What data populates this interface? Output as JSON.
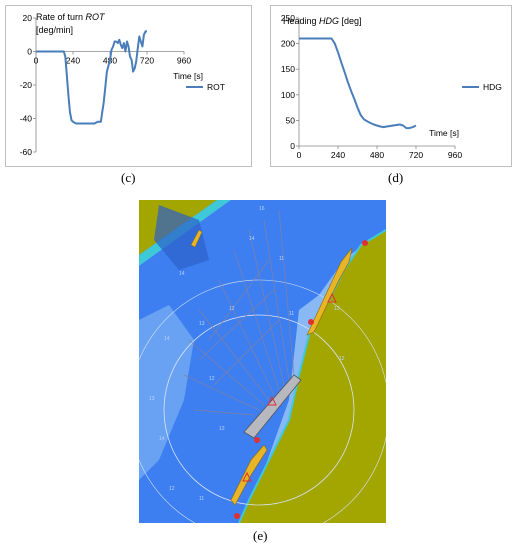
{
  "captions": {
    "c": "(c)",
    "d": "(d)",
    "e": "(e)"
  },
  "chart_data": [
    {
      "type": "line",
      "title_line1": "Rate of turn ",
      "title_var": "ROT",
      "title_line2": "[deg/min]",
      "xlabel": "Time [s]",
      "xlim": [
        0,
        960
      ],
      "ylim": [
        -60,
        20
      ],
      "xticks": [
        "0",
        "240",
        "480",
        "720",
        "960"
      ],
      "yticks": [
        "20",
        "0",
        "-20",
        "-40",
        "-60"
      ],
      "legend_position": "right",
      "series": [
        {
          "name": "ROT",
          "color": "#4a7ebb",
          "x": [
            0,
            180,
            190,
            200,
            210,
            220,
            230,
            240,
            260,
            300,
            360,
            380,
            400,
            420,
            440,
            460,
            480,
            490,
            500,
            510,
            520,
            530,
            540,
            550,
            560,
            570,
            580,
            590,
            600,
            610,
            620,
            630,
            640,
            650,
            660,
            670,
            680,
            690,
            700,
            710,
            720
          ],
          "y": [
            0,
            0,
            -3,
            -14,
            -26,
            -36,
            -41,
            -42,
            -43,
            -43,
            -43,
            -43,
            -42,
            -42,
            -30,
            -12,
            -5,
            1,
            3,
            6,
            6,
            5,
            7,
            4,
            2,
            5,
            0,
            6,
            3,
            -3,
            -5,
            -12,
            -10,
            -6,
            2,
            9,
            6,
            3,
            10,
            12,
            12
          ]
        }
      ]
    },
    {
      "type": "line",
      "title_line1": "Heading ",
      "title_var": "HDG",
      "title_line3": " [deg]",
      "xlabel": "Time [s]",
      "xlim": [
        0,
        960
      ],
      "ylim": [
        0,
        250
      ],
      "xticks": [
        "0",
        "240",
        "480",
        "720",
        "960"
      ],
      "yticks": [
        "250",
        "200",
        "150",
        "100",
        "50",
        "0"
      ],
      "legend_position": "right",
      "series": [
        {
          "name": "HDG",
          "color": "#4a7ebb",
          "x": [
            0,
            100,
            160,
            200,
            220,
            240,
            260,
            280,
            300,
            320,
            340,
            360,
            380,
            400,
            420,
            440,
            460,
            480,
            500,
            520,
            540,
            560,
            580,
            600,
            620,
            640,
            660,
            680,
            700,
            720
          ],
          "y": [
            210,
            210,
            210,
            210,
            200,
            183,
            163,
            145,
            125,
            108,
            92,
            75,
            60,
            52,
            48,
            45,
            42,
            40,
            38,
            37,
            38,
            39,
            40,
            41,
            42,
            40,
            35,
            35,
            37,
            40
          ]
        }
      ]
    }
  ],
  "map": {
    "water_color": "#3d7ff0",
    "land_color": "#a3a600",
    "shallow_color": "#88b9f5",
    "ship_color": "#e8b428",
    "depth_labels": [
      "14",
      "14",
      "13",
      "12",
      "11",
      "13",
      "12",
      "14",
      "11",
      "13",
      "12",
      "11",
      "14",
      "13",
      "12",
      "16"
    ]
  }
}
